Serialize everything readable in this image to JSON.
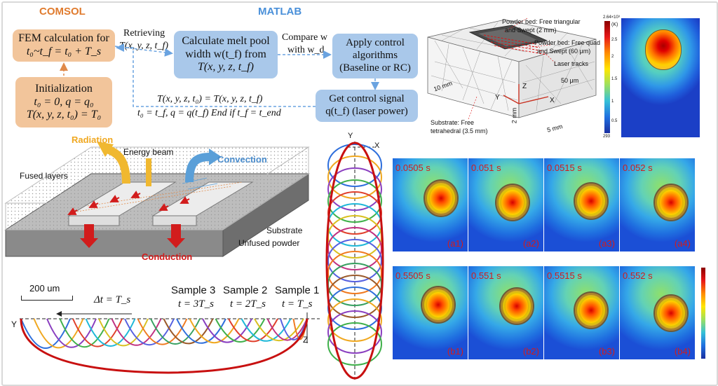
{
  "comsol": {
    "title": "COMSOL",
    "fem_line1": "FEM calculation for",
    "fem_line2": "t₀~t_f = t₀ + T_s",
    "init_title": "Initialization",
    "init_line1": "t₀ = 0, q = q₀",
    "init_line2": "T(x, y, z, t₀) = T₀"
  },
  "matlab": {
    "title": "MATLAB",
    "calc_line1": "Calculate melt pool",
    "calc_line2": "width w(t_f) from",
    "calc_line3": "T(x, y, z, t_f)",
    "apply_line1": "Apply control",
    "apply_line2": "algorithms",
    "apply_line3": "(Baseline or RC)",
    "signal_line1": "Get control signal",
    "signal_line2": "q(t_f) (laser power)"
  },
  "arrows": {
    "retrieving": "Retrieving",
    "retrieving_expr": "T(x, y, z, t_f)",
    "compare": "Compare w",
    "compare_with": "with w_d",
    "update_line1": "T(x, y, z, t₀) = T(x, y, z, t_f)",
    "update_line2": "t₀ = t_f, q = q(t_f) End if t_f = t_end"
  },
  "mesh": {
    "powder_tri": "Powder bed: Free triangular",
    "powder_tri2": "and Swept (2 mm)",
    "powder_quad": "Powder bed: Free quad",
    "powder_quad2": "and Swept (60 μm)",
    "laser_tracks": "Laser tracks",
    "dim_50um": "50 μm",
    "dim_10mm": "10 mm",
    "dim_2mm": "2 mm",
    "dim_5mm": "5 mm",
    "axis_x": "X",
    "axis_y": "Y",
    "axis_z": "Z",
    "substrate": "Substrate: Free",
    "substrate2": "tetrahedral (3.5 mm)"
  },
  "colorbar_top": {
    "max": "2.64×10³",
    "unit": "(K)",
    "t1": "2.5",
    "t2": "2",
    "t3": "1.5",
    "t4": "1",
    "t5": "0.5",
    "min": "293"
  },
  "process": {
    "radiation": "Radiation",
    "energy_beam": "Energy beam",
    "convection": "Convection",
    "fused_layers": "Fused layers",
    "substrate": "Substrate",
    "unfused": "Unfused powder",
    "conduction": "Conduction"
  },
  "samples": {
    "scale": "200 um",
    "dt": "Δt = T_s",
    "s3": "Sample 3",
    "s2": "Sample 2",
    "s1": "Sample 1",
    "t3": "t = 3T_s",
    "t2": "t = 2T_s",
    "t1": "t = T_s",
    "axis_y": "Y",
    "axis_z": "Z"
  },
  "vertical": {
    "axis_y": "Y",
    "axis_x": "X"
  },
  "panels": [
    {
      "time": "0.0505 s",
      "id": "(a1)"
    },
    {
      "time": "0.051 s",
      "id": "(a2)"
    },
    {
      "time": "0.0515 s",
      "id": "(a3)"
    },
    {
      "time": "0.052 s",
      "id": "(a4)"
    },
    {
      "time": "0.5505 s",
      "id": "(b1)"
    },
    {
      "time": "0.551 s",
      "id": "(b2)"
    },
    {
      "time": "0.5515 s",
      "id": "(b3)"
    },
    {
      "time": "0.552 s",
      "id": "(b4)"
    }
  ],
  "colors": {
    "orange_box": "#f2c59b",
    "blue_box": "#a9c8ea",
    "comsol_title": "#e07b2e",
    "matlab_title": "#4a90d9",
    "conduction": "#d21c1c"
  }
}
